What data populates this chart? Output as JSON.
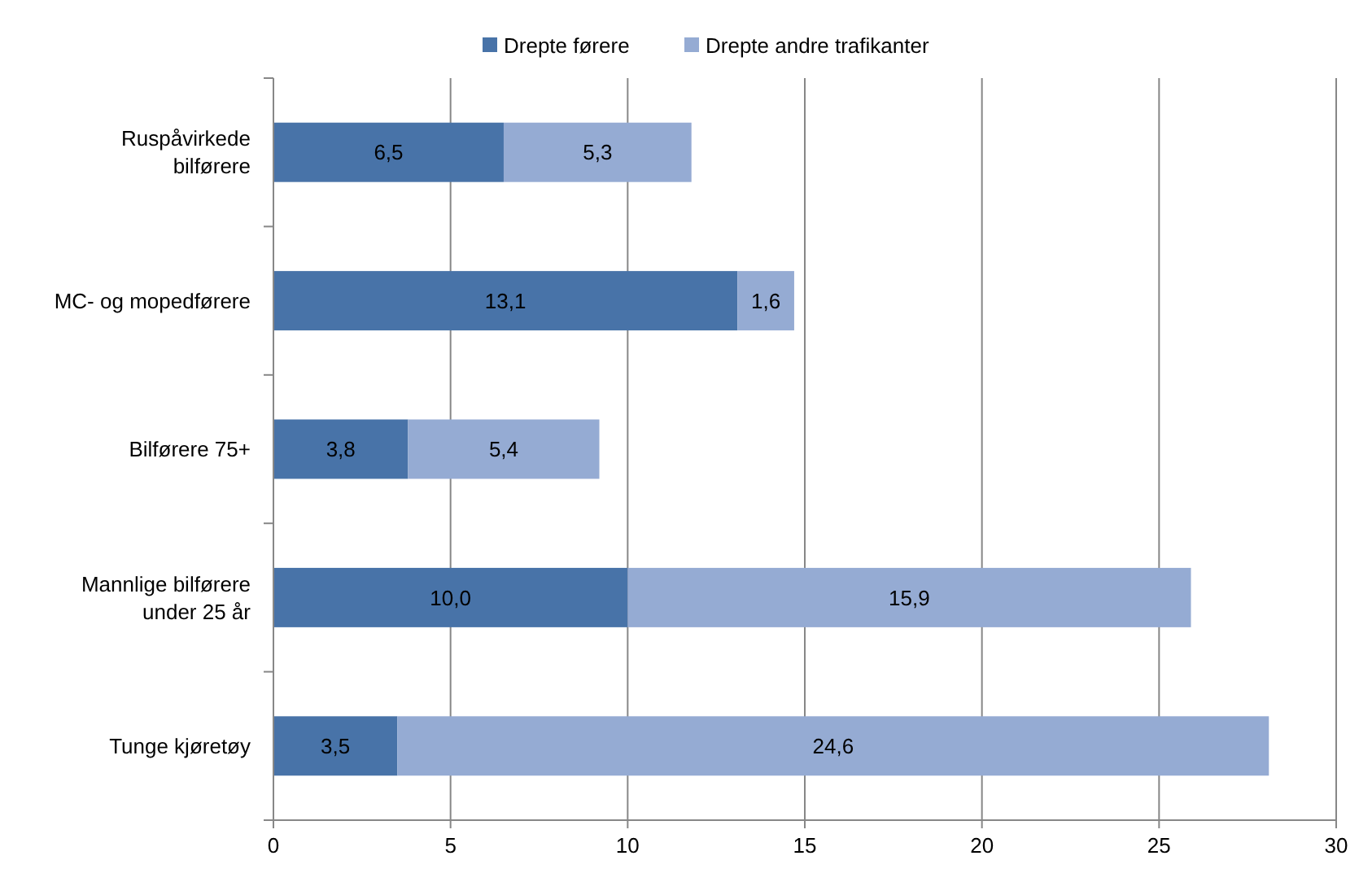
{
  "chart_data": {
    "type": "bar",
    "orientation": "horizontal",
    "stacked": true,
    "categories": [
      "Ruspåvirkede bilførere",
      "MC- og mopedførere",
      "Bilførere 75+",
      "Mannlige bilførere under 25 år",
      "Tunge kjøretøy"
    ],
    "series": [
      {
        "name": "Drepte førere",
        "color": "#4873a8",
        "values": [
          6.5,
          13.1,
          3.8,
          10.0,
          3.5
        ],
        "value_labels": [
          "6,5",
          "13,1",
          "3,8",
          "10,0",
          "3,5"
        ]
      },
      {
        "name": "Drepte andre trafikanter",
        "color": "#95abd3",
        "values": [
          5.3,
          1.6,
          5.4,
          15.9,
          24.6
        ],
        "value_labels": [
          "5,3",
          "1,6",
          "5,4",
          "15,9",
          "24,6"
        ]
      }
    ],
    "xlim": [
      0,
      30
    ],
    "xticks": [
      0,
      5,
      10,
      15,
      20,
      25,
      30
    ],
    "grid": "x",
    "legend": "top"
  }
}
